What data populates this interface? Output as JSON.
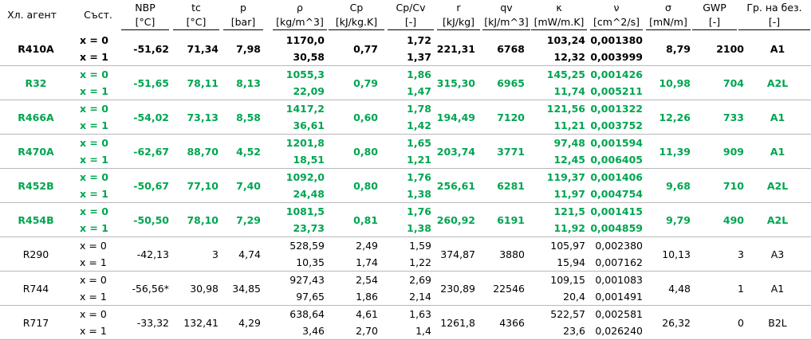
{
  "headers": [
    {
      "name": "Хл. агент",
      "unit": ""
    },
    {
      "name": "Съст.",
      "unit": ""
    },
    {
      "name": "NBP",
      "unit": "[°C]"
    },
    {
      "name": "tc",
      "unit": "[°C]"
    },
    {
      "name": "p",
      "unit": "[bar]"
    },
    {
      "name": "ρ",
      "unit": "[kg/m^3]"
    },
    {
      "name": "Cp",
      "unit": "[kJ/kg.K]"
    },
    {
      "name": "Cp/Cv",
      "unit": "[-]"
    },
    {
      "name": "r",
      "unit": "[kJ/kg]"
    },
    {
      "name": "qv",
      "unit": "[kJ/m^3]"
    },
    {
      "name": "κ",
      "unit": "[mW/m.K]"
    },
    {
      "name": "ν",
      "unit": "[cm^2/s]"
    },
    {
      "name": "σ",
      "unit": "[mN/m]"
    },
    {
      "name": "GWP",
      "unit": "[-]"
    },
    {
      "name": "Гр. на без.",
      "unit": "[-]"
    }
  ],
  "state_labels": [
    "x = 0",
    "x = 1"
  ],
  "colors": {
    "green": "#00a550",
    "black": "#000000",
    "divider": "#b8b8b8"
  },
  "rows": [
    {
      "agent": "R410A",
      "style": "bold",
      "nbp": "-51,62",
      "tc": "71,34",
      "p": "7,98",
      "rho": [
        "1170,0",
        "30,58"
      ],
      "cp": [
        "0,77"
      ],
      "cpcv": [
        "1,72",
        "1,37"
      ],
      "r": "221,31",
      "qv": "6768",
      "kappa": [
        "103,24",
        "12,32"
      ],
      "nu": [
        "0,001380",
        "0,003999"
      ],
      "sigma": "8,79",
      "gwp": "2100",
      "safety": "A1"
    },
    {
      "agent": "R32",
      "style": "green",
      "nbp": "-51,65",
      "tc": "78,11",
      "p": "8,13",
      "rho": [
        "1055,3",
        "22,09"
      ],
      "cp": [
        "0,79"
      ],
      "cpcv": [
        "1,86",
        "1,47"
      ],
      "r": "315,30",
      "qv": "6965",
      "kappa": [
        "145,25",
        "11,74"
      ],
      "nu": [
        "0,001426",
        "0,005211"
      ],
      "sigma": "10,98",
      "gwp": "704",
      "safety": "A2L"
    },
    {
      "agent": "R466A",
      "style": "green",
      "nbp": "-54,02",
      "tc": "73,13",
      "p": "8,58",
      "rho": [
        "1417,2",
        "36,61"
      ],
      "cp": [
        "0,60"
      ],
      "cpcv": [
        "1,78",
        "1,42"
      ],
      "r": "194,49",
      "qv": "7120",
      "kappa": [
        "121,56",
        "11,21"
      ],
      "nu": [
        "0,001322",
        "0,003752"
      ],
      "sigma": "12,26",
      "gwp": "733",
      "safety": "A1"
    },
    {
      "agent": "R470A",
      "style": "green",
      "nbp": "-62,67",
      "tc": "88,70",
      "p": "4,52",
      "rho": [
        "1201,8",
        "18,51"
      ],
      "cp": [
        "0,80"
      ],
      "cpcv": [
        "1,65",
        "1,21"
      ],
      "r": "203,74",
      "qv": "3771",
      "kappa": [
        "97,48",
        "12,45"
      ],
      "nu": [
        "0,001594",
        "0,006405"
      ],
      "sigma": "11,39",
      "gwp": "909",
      "safety": "A1"
    },
    {
      "agent": "R452B",
      "style": "green",
      "nbp": "-50,67",
      "tc": "77,10",
      "p": "7,40",
      "rho": [
        "1092,0",
        "24,48"
      ],
      "cp": [
        "0,80"
      ],
      "cpcv": [
        "1,76",
        "1,38"
      ],
      "r": "256,61",
      "qv": "6281",
      "kappa": [
        "119,37",
        "11,97"
      ],
      "nu": [
        "0,001406",
        "0,004754"
      ],
      "sigma": "9,68",
      "gwp": "710",
      "safety": "A2L"
    },
    {
      "agent": "R454B",
      "style": "green",
      "nbp": "-50,50",
      "tc": "78,10",
      "p": "7,29",
      "rho": [
        "1081,5",
        "23,73"
      ],
      "cp": [
        "0,81"
      ],
      "cpcv": [
        "1,76",
        "1,38"
      ],
      "r": "260,92",
      "qv": "6191",
      "kappa": [
        "121,5",
        "11,92"
      ],
      "nu": [
        "0,001415",
        "0,004859"
      ],
      "sigma": "9,79",
      "gwp": "490",
      "safety": "A2L"
    },
    {
      "agent": "R290",
      "style": "normal",
      "nbp": "-42,13",
      "tc": "3",
      "p": "4,74",
      "rho": [
        "528,59",
        "10,35"
      ],
      "cp": [
        "2,49",
        "1,74"
      ],
      "cpcv": [
        "1,59",
        "1,22"
      ],
      "r": "374,87",
      "qv": "3880",
      "kappa": [
        "105,97",
        "15,94"
      ],
      "nu": [
        "0,002380",
        "0,007162"
      ],
      "sigma": "10,13",
      "gwp": "3",
      "safety": "A3"
    },
    {
      "agent": "R744",
      "style": "normal",
      "nbp": "-56,56*",
      "tc": "30,98",
      "p": "34,85",
      "rho": [
        "927,43",
        "97,65"
      ],
      "cp": [
        "2,54",
        "1,86"
      ],
      "cpcv": [
        "2,69",
        "2,14"
      ],
      "r": "230,89",
      "qv": "22546",
      "kappa": [
        "109,15",
        "20,4"
      ],
      "nu": [
        "0,001083",
        "0,001491"
      ],
      "sigma": "4,48",
      "gwp": "1",
      "safety": "A1"
    },
    {
      "agent": "R717",
      "style": "normal",
      "nbp": "-33,32",
      "tc": "132,41",
      "p": "4,29",
      "rho": [
        "638,64",
        "3,46"
      ],
      "cp": [
        "4,61",
        "2,70"
      ],
      "cpcv": [
        "1,63",
        "1,4"
      ],
      "r": "1261,8",
      "qv": "4366",
      "kappa": [
        "522,57",
        "23,6"
      ],
      "nu": [
        "0,002581",
        "0,026240"
      ],
      "sigma": "26,32",
      "gwp": "0",
      "safety": "B2L"
    }
  ]
}
